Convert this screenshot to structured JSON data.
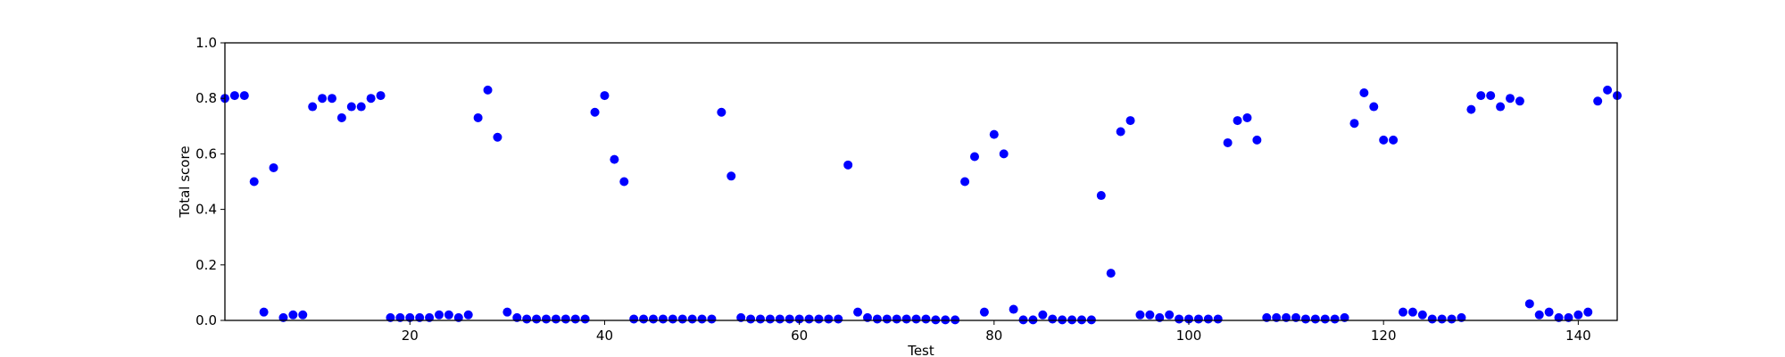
{
  "chart_data": {
    "type": "scatter",
    "xlabel": "Test",
    "ylabel": "Total score",
    "xlim": [
      1,
      144
    ],
    "ylim": [
      0.0,
      1.0
    ],
    "x_ticks": [
      20,
      40,
      60,
      80,
      100,
      120,
      140
    ],
    "x_tick_labels": [
      "20",
      "40",
      "60",
      "80",
      "100",
      "120",
      "140"
    ],
    "y_ticks": [
      0.0,
      0.2,
      0.4,
      0.6,
      0.8,
      1.0
    ],
    "y_tick_labels": [
      "0.0",
      "0.2",
      "0.4",
      "0.6",
      "0.8",
      "1.0"
    ],
    "grid": false,
    "marker_color": "#0000ff",
    "points": [
      [
        1,
        0.8
      ],
      [
        2,
        0.81
      ],
      [
        3,
        0.81
      ],
      [
        4,
        0.5
      ],
      [
        5,
        0.03
      ],
      [
        6,
        0.55
      ],
      [
        7,
        0.01
      ],
      [
        8,
        0.02
      ],
      [
        9,
        0.02
      ],
      [
        10,
        0.77
      ],
      [
        11,
        0.8
      ],
      [
        12,
        0.8
      ],
      [
        13,
        0.73
      ],
      [
        14,
        0.77
      ],
      [
        15,
        0.77
      ],
      [
        16,
        0.8
      ],
      [
        17,
        0.81
      ],
      [
        18,
        0.01
      ],
      [
        19,
        0.01
      ],
      [
        20,
        0.01
      ],
      [
        21,
        0.01
      ],
      [
        22,
        0.01
      ],
      [
        23,
        0.02
      ],
      [
        24,
        0.02
      ],
      [
        25,
        0.01
      ],
      [
        26,
        0.02
      ],
      [
        27,
        0.73
      ],
      [
        28,
        0.83
      ],
      [
        29,
        0.66
      ],
      [
        30,
        0.03
      ],
      [
        31,
        0.01
      ],
      [
        32,
        0.005
      ],
      [
        33,
        0.005
      ],
      [
        34,
        0.005
      ],
      [
        35,
        0.005
      ],
      [
        36,
        0.005
      ],
      [
        37,
        0.005
      ],
      [
        38,
        0.005
      ],
      [
        39,
        0.75
      ],
      [
        40,
        0.81
      ],
      [
        41,
        0.58
      ],
      [
        42,
        0.5
      ],
      [
        43,
        0.005
      ],
      [
        44,
        0.005
      ],
      [
        45,
        0.005
      ],
      [
        46,
        0.005
      ],
      [
        47,
        0.005
      ],
      [
        48,
        0.005
      ],
      [
        49,
        0.005
      ],
      [
        50,
        0.005
      ],
      [
        51,
        0.005
      ],
      [
        52,
        0.75
      ],
      [
        53,
        0.52
      ],
      [
        54,
        0.01
      ],
      [
        55,
        0.005
      ],
      [
        56,
        0.005
      ],
      [
        57,
        0.005
      ],
      [
        58,
        0.005
      ],
      [
        59,
        0.005
      ],
      [
        60,
        0.005
      ],
      [
        61,
        0.005
      ],
      [
        62,
        0.005
      ],
      [
        63,
        0.005
      ],
      [
        64,
        0.005
      ],
      [
        65,
        0.56
      ],
      [
        66,
        0.03
      ],
      [
        67,
        0.01
      ],
      [
        68,
        0.005
      ],
      [
        69,
        0.005
      ],
      [
        70,
        0.005
      ],
      [
        71,
        0.005
      ],
      [
        72,
        0.005
      ],
      [
        73,
        0.005
      ],
      [
        74,
        0.002
      ],
      [
        75,
        0.002
      ],
      [
        76,
        0.002
      ],
      [
        77,
        0.5
      ],
      [
        78,
        0.59
      ],
      [
        79,
        0.03
      ],
      [
        80,
        0.67
      ],
      [
        81,
        0.6
      ],
      [
        82,
        0.04
      ],
      [
        83,
        0.002
      ],
      [
        84,
        0.002
      ],
      [
        85,
        0.02
      ],
      [
        86,
        0.005
      ],
      [
        87,
        0.002
      ],
      [
        88,
        0.002
      ],
      [
        89,
        0.002
      ],
      [
        90,
        0.002
      ],
      [
        91,
        0.45
      ],
      [
        92,
        0.17
      ],
      [
        93,
        0.68
      ],
      [
        94,
        0.72
      ],
      [
        95,
        0.02
      ],
      [
        96,
        0.02
      ],
      [
        97,
        0.01
      ],
      [
        98,
        0.02
      ],
      [
        99,
        0.005
      ],
      [
        100,
        0.005
      ],
      [
        101,
        0.005
      ],
      [
        102,
        0.005
      ],
      [
        103,
        0.005
      ],
      [
        104,
        0.64
      ],
      [
        105,
        0.72
      ],
      [
        106,
        0.73
      ],
      [
        107,
        0.65
      ],
      [
        108,
        0.01
      ],
      [
        109,
        0.01
      ],
      [
        110,
        0.01
      ],
      [
        111,
        0.01
      ],
      [
        112,
        0.005
      ],
      [
        113,
        0.005
      ],
      [
        114,
        0.005
      ],
      [
        115,
        0.005
      ],
      [
        116,
        0.01
      ],
      [
        117,
        0.71
      ],
      [
        118,
        0.82
      ],
      [
        119,
        0.77
      ],
      [
        120,
        0.65
      ],
      [
        121,
        0.65
      ],
      [
        122,
        0.03
      ],
      [
        123,
        0.03
      ],
      [
        124,
        0.02
      ],
      [
        125,
        0.005
      ],
      [
        126,
        0.005
      ],
      [
        127,
        0.005
      ],
      [
        128,
        0.01
      ],
      [
        129,
        0.76
      ],
      [
        130,
        0.81
      ],
      [
        131,
        0.81
      ],
      [
        132,
        0.77
      ],
      [
        133,
        0.8
      ],
      [
        134,
        0.79
      ],
      [
        135,
        0.06
      ],
      [
        136,
        0.02
      ],
      [
        137,
        0.03
      ],
      [
        138,
        0.01
      ],
      [
        139,
        0.01
      ],
      [
        140,
        0.02
      ],
      [
        141,
        0.03
      ],
      [
        142,
        0.79
      ],
      [
        143,
        0.83
      ],
      [
        144,
        0.81
      ]
    ]
  }
}
